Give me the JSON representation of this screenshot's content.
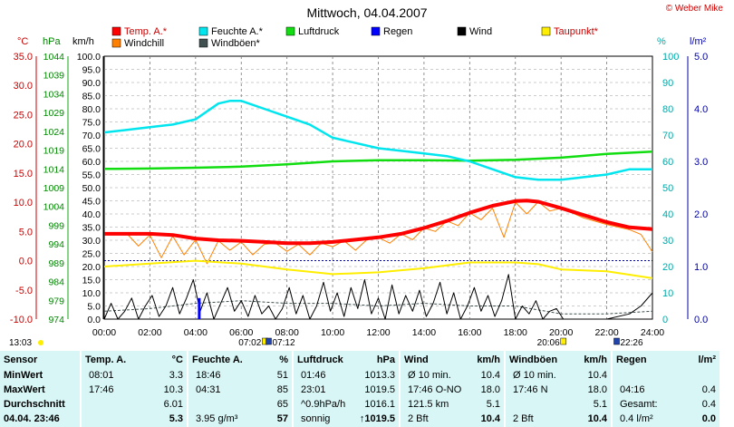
{
  "title": "Mittwoch, 04.04.2007",
  "copyright": "© Weber Mike",
  "legend": [
    {
      "label": "Temp. A.*",
      "color": "#ff0000"
    },
    {
      "label": "Feuchte A.*",
      "color": "#00e5ee"
    },
    {
      "label": "Luftdruck",
      "color": "#11dd11"
    },
    {
      "label": "Regen",
      "color": "#0000ff"
    },
    {
      "label": "Wind",
      "color": "#000000"
    },
    {
      "label": "Taupunkt*",
      "color": "#ffee00"
    },
    {
      "label": "Windchill",
      "color": "#ff8000"
    },
    {
      "label": "Windböen*",
      "color": "#405050"
    }
  ],
  "axis_units": {
    "celsius": "°C",
    "hpa": "hPa",
    "kmh": "km/h",
    "percent": "%",
    "rain": "l/m²"
  },
  "axis_ticks": {
    "celsius": [
      "35.0",
      "30.0",
      "25.0",
      "20.0",
      "15.0",
      "10.0",
      "5.0",
      "0.0",
      "-5.0",
      "-10.0"
    ],
    "hpa": [
      "1044",
      "1039",
      "1034",
      "1029",
      "1024",
      "1019",
      "1014",
      "1009",
      "1004",
      "999",
      "994",
      "989",
      "984",
      "979",
      "974"
    ],
    "kmh": [
      "100.0",
      "95.0",
      "90.0",
      "85.0",
      "80.0",
      "75.0",
      "70.0",
      "65.0",
      "60.0",
      "55.0",
      "50.0",
      "45.0",
      "40.0",
      "35.0",
      "30.0",
      "25.0",
      "20.0",
      "15.0",
      "10.0",
      "5.0",
      "0.0"
    ],
    "percent": [
      "100",
      "90",
      "80",
      "70",
      "60",
      "50",
      "40",
      "30",
      "20",
      "10",
      "0"
    ],
    "rain": [
      "5.0",
      "4.0",
      "3.0",
      "2.0",
      "1.0",
      "0.0"
    ],
    "time": [
      "00:00",
      "02:00",
      "04:00",
      "06:00",
      "08:00",
      "10:00",
      "12:00",
      "14:00",
      "16:00",
      "18:00",
      "20:00",
      "22:00",
      "24:00"
    ]
  },
  "sun": {
    "sunrise": "07:02",
    "sunset": "20:06",
    "moonrise": "07:12",
    "moonset": "22:26",
    "sunrise_side": "13:03"
  },
  "chart_data": {
    "type": "line",
    "title": "Mittwoch, 04.04.2007",
    "x_unit": "hours",
    "xlim": [
      0,
      24
    ],
    "series": [
      {
        "name": "Temp. A.*",
        "axis": "celsius",
        "ylim": [
          -10,
          35
        ],
        "color": "#ff0000",
        "x": [
          0,
          1,
          2,
          3,
          4,
          5,
          6,
          7,
          8,
          9,
          10,
          11,
          12,
          13,
          14,
          15,
          16,
          17,
          18,
          18.5,
          19,
          20,
          21,
          22,
          23,
          24
        ],
        "y": [
          4.6,
          4.6,
          4.6,
          4.4,
          3.8,
          3.5,
          3.4,
          3.2,
          3.0,
          3.0,
          3.2,
          3.6,
          4.0,
          4.6,
          5.6,
          6.8,
          8.2,
          9.4,
          10.2,
          10.3,
          10.1,
          9.0,
          7.8,
          6.6,
          5.7,
          5.4
        ]
      },
      {
        "name": "Feuchte A.*",
        "axis": "percent",
        "ylim": [
          0,
          100
        ],
        "color": "#00e5ee",
        "x": [
          0,
          1,
          2,
          3,
          4,
          5,
          5.5,
          6,
          7,
          8,
          9,
          10,
          11,
          12,
          13,
          14,
          15,
          16,
          17,
          18,
          19,
          20,
          21,
          22,
          23,
          24
        ],
        "y": [
          71,
          72,
          73,
          74,
          76,
          82,
          83,
          83,
          80,
          77,
          74,
          69,
          67,
          65,
          64,
          63,
          62,
          60,
          57,
          54,
          53,
          53,
          54,
          55,
          57,
          57
        ]
      },
      {
        "name": "Luftdruck",
        "axis": "hpa",
        "ylim": [
          974,
          1044
        ],
        "color": "#11dd11",
        "x": [
          0,
          2,
          4,
          6,
          8,
          10,
          12,
          14,
          16,
          18,
          20,
          22,
          24
        ],
        "y": [
          1014.0,
          1014.1,
          1014.3,
          1014.6,
          1015.2,
          1016.0,
          1016.3,
          1016.3,
          1016.2,
          1016.4,
          1017.0,
          1018.0,
          1018.6
        ]
      },
      {
        "name": "Taupunkt*",
        "axis": "celsius",
        "ylim": [
          -10,
          35
        ],
        "color": "#ffee00",
        "x": [
          0,
          2,
          4,
          6,
          8,
          10,
          12,
          14,
          16,
          18,
          19,
          20,
          22,
          24
        ],
        "y": [
          -1.0,
          -0.5,
          0.0,
          -0.5,
          -1.5,
          -2.3,
          -2.0,
          -1.3,
          -0.3,
          -0.3,
          -0.6,
          -1.5,
          -1.8,
          -3.0
        ]
      },
      {
        "name": "Windchill",
        "axis": "celsius",
        "ylim": [
          -10,
          35
        ],
        "color": "#ff8000",
        "x": [
          0,
          1,
          1.5,
          2,
          2.5,
          3,
          3.5,
          4,
          4.5,
          5,
          5.5,
          6,
          6.5,
          7,
          7.5,
          8,
          8.5,
          9,
          9.5,
          10,
          10.5,
          11,
          11.5,
          12,
          12.5,
          13,
          13.5,
          14,
          14.5,
          15,
          15.5,
          16,
          16.5,
          17,
          17.5,
          18,
          18.5,
          19,
          19.5,
          20,
          21,
          22,
          23,
          23.5,
          24
        ],
        "y": [
          4.6,
          4.6,
          2.5,
          4.4,
          0.5,
          4.2,
          1.0,
          3.6,
          -0.5,
          3.4,
          1.8,
          3.2,
          1.0,
          2.8,
          3.0,
          1.6,
          2.8,
          1.0,
          3.0,
          2.4,
          3.4,
          1.8,
          3.6,
          4.0,
          3.0,
          4.6,
          3.6,
          5.6,
          5.0,
          6.8,
          6.0,
          8.2,
          7.0,
          9.0,
          4.0,
          10.0,
          8.0,
          10.1,
          8.5,
          9.0,
          7.3,
          6.2,
          5.3,
          4.5,
          1.5
        ]
      },
      {
        "name": "Wind",
        "axis": "kmh",
        "ylim": [
          0,
          100
        ],
        "color": "#000000",
        "x": [
          0,
          0.3,
          0.6,
          0.9,
          1.2,
          1.5,
          1.8,
          2.1,
          2.4,
          2.7,
          3.0,
          3.3,
          3.6,
          3.9,
          4.2,
          4.5,
          4.8,
          5.1,
          5.4,
          5.7,
          6.0,
          6.3,
          6.6,
          6.9,
          7.2,
          7.5,
          7.8,
          8.1,
          8.4,
          8.7,
          9.0,
          9.3,
          9.6,
          9.9,
          10.2,
          10.5,
          10.8,
          11.1,
          11.4,
          11.7,
          12.0,
          12.3,
          12.6,
          12.9,
          13.2,
          13.5,
          13.8,
          14.1,
          14.4,
          14.7,
          15.0,
          15.3,
          15.6,
          15.9,
          16.2,
          16.5,
          16.8,
          17.1,
          17.4,
          17.7,
          18.0,
          18.3,
          18.6,
          18.9,
          19.2,
          19.5,
          19.8,
          20.1,
          21,
          22,
          23,
          23.5,
          24
        ],
        "y": [
          0,
          6,
          0,
          3,
          8,
          0,
          5,
          9,
          1,
          5,
          12,
          2,
          8,
          15,
          3,
          10,
          0,
          6,
          12,
          3,
          7,
          1,
          9,
          2,
          5,
          0,
          4,
          12,
          2,
          9,
          0,
          5,
          14,
          3,
          10,
          1,
          12,
          4,
          15,
          2,
          8,
          0,
          13,
          2,
          9,
          3,
          11,
          1,
          6,
          14,
          2,
          10,
          0,
          5,
          12,
          3,
          9,
          1,
          7,
          17,
          0,
          5,
          2,
          7,
          0,
          3,
          4,
          0,
          0,
          0,
          2,
          5,
          10
        ]
      },
      {
        "name": "Windböen*",
        "axis": "kmh",
        "ylim": [
          0,
          100
        ],
        "color": "#405050",
        "x": [
          0,
          2,
          4,
          6,
          8,
          10,
          12,
          14,
          16,
          18,
          20,
          22,
          24
        ],
        "y": [
          3,
          4,
          6,
          7,
          6,
          6,
          5,
          6,
          5,
          5,
          2,
          2,
          3
        ]
      },
      {
        "name": "Regen",
        "axis": "rain",
        "ylim": [
          0,
          5
        ],
        "color": "#0000ff",
        "x": [
          4.16
        ],
        "y": [
          0.4
        ]
      }
    ]
  },
  "table": [
    {
      "header": [
        "Sensor",
        ""
      ],
      "rows": [
        [
          "MinWert",
          ""
        ],
        [
          "MaxWert",
          ""
        ],
        [
          "Durchschnitt",
          ""
        ],
        [
          "04.04. 23:46",
          ""
        ]
      ]
    },
    {
      "header": [
        "Temp. A.",
        "°C"
      ],
      "rows": [
        [
          "08:01",
          "3.3"
        ],
        [
          "17:46",
          "10.3"
        ],
        [
          "",
          "6.01"
        ],
        [
          "",
          "5.3"
        ]
      ]
    },
    {
      "header": [
        "Feuchte A.",
        "%"
      ],
      "rows": [
        [
          "18:46",
          "51"
        ],
        [
          "04:31",
          "85"
        ],
        [
          "",
          "65"
        ],
        [
          "3.95 g/m³",
          "57"
        ]
      ]
    },
    {
      "header": [
        "Luftdruck",
        "hPa"
      ],
      "rows": [
        [
          "01:46",
          "1013.3"
        ],
        [
          "23:01",
          "1019.5"
        ],
        [
          "^0.9hPa/h",
          "1016.1"
        ],
        [
          "sonnig",
          "↑1019.5"
        ]
      ]
    },
    {
      "header": [
        "Wind",
        "km/h"
      ],
      "rows": [
        [
          "Ø 10 min.",
          "10.4"
        ],
        [
          "17:46      O-NO",
          "18.0"
        ],
        [
          "121.5 km",
          "5.1"
        ],
        [
          "2 Bft",
          "10.4"
        ]
      ]
    },
    {
      "header": [
        "Windböen",
        "km/h"
      ],
      "rows": [
        [
          "Ø 10 min.",
          "10.4"
        ],
        [
          "17:46      N",
          "18.0"
        ],
        [
          "",
          "5.1"
        ],
        [
          "2 Bft",
          "10.4"
        ]
      ]
    },
    {
      "header": [
        "Regen",
        "l/m²"
      ],
      "rows": [
        [
          "",
          ""
        ],
        [
          "04:16",
          "0.4"
        ],
        [
          "Gesamt:",
          "0.4"
        ],
        [
          "0.4 l/m²",
          "0.0"
        ]
      ]
    }
  ]
}
